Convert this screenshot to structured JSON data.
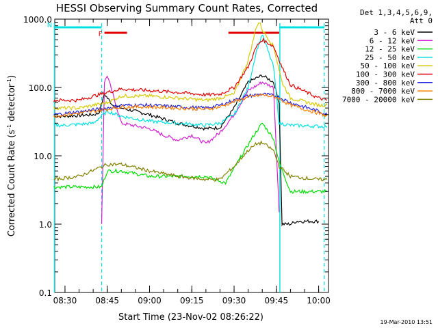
{
  "chart_data": {
    "type": "line",
    "title": "HESSI Observing Summary Count Rates, Corrected",
    "xlabel": "Start Time (23-Nov-02 08:26:22)",
    "ylabel_main": "Corrected Count Rate (s",
    "ylabel_sup1": "-1",
    "ylabel_mid": " detector",
    "ylabel_sup2": "-1",
    "ylabel_end": ")",
    "y_scale": "log",
    "ylim": [
      0.1,
      1000
    ],
    "xlim": [
      "08:26:22",
      "10:03:30"
    ],
    "x_ticks": [
      "08:30",
      "08:45",
      "09:00",
      "09:15",
      "09:30",
      "09:45",
      "10:00"
    ],
    "y_ticks": [
      "0.1",
      "1.0",
      "10.0",
      "100.0",
      "1000.0"
    ],
    "legend_header": [
      "Det 1,3,4,5,6,9,",
      "Att 0"
    ],
    "legend_placement": "top-right outside",
    "timestamp": "19-Mar-2010 13:51",
    "series": [
      {
        "name": "3 - 6 keV",
        "color": "#000000",
        "x": [
          "08:26",
          "08:30",
          "08:35",
          "08:40",
          "08:42",
          "08:44",
          "08:47",
          "08:50",
          "09:00",
          "09:10",
          "09:20",
          "09:25",
          "09:30",
          "09:35",
          "09:40",
          "09:44",
          "09:46",
          "09:47",
          "09:50",
          "09:52",
          "10:00"
        ],
        "y": [
          38,
          38,
          39,
          40,
          42,
          80,
          55,
          50,
          40,
          30,
          25,
          26,
          50,
          120,
          150,
          120,
          60,
          1.0,
          1.0,
          1.1,
          1.1
        ]
      },
      {
        "name": "6 - 12 keV",
        "color": "#d020d0",
        "x": [
          "08:43",
          "08:44",
          "08:45",
          "08:50",
          "09:00",
          "09:05",
          "09:10",
          "09:15",
          "09:20",
          "09:25",
          "09:30",
          "09:35",
          "09:40",
          "09:44",
          "09:46"
        ],
        "y": [
          1.0,
          120,
          150,
          30,
          25,
          20,
          17,
          20,
          15,
          22,
          40,
          90,
          120,
          100,
          1.5
        ]
      },
      {
        "name": "12 - 25 keV",
        "color": "#00dd00",
        "x": [
          "08:26",
          "08:35",
          "08:43",
          "08:45",
          "08:50",
          "09:00",
          "09:10",
          "09:20",
          "09:27",
          "09:32",
          "09:37",
          "09:40",
          "09:44",
          "09:46",
          "09:50",
          "10:00",
          "10:03"
        ],
        "y": [
          3.5,
          3.5,
          3.5,
          6,
          6,
          5,
          5,
          5,
          4,
          9,
          20,
          30,
          18,
          8,
          3,
          3,
          3
        ]
      },
      {
        "name": "25 - 50 keV",
        "color": "#00e0e0",
        "x": [
          "08:26",
          "08:30",
          "08:40",
          "08:45",
          "08:50",
          "09:00",
          "09:10",
          "09:20",
          "09:25",
          "09:30",
          "09:35",
          "09:38",
          "09:40",
          "09:44",
          "09:46",
          "09:50",
          "10:00",
          "10:03"
        ],
        "y": [
          28,
          28,
          30,
          45,
          38,
          32,
          30,
          28,
          30,
          40,
          100,
          350,
          600,
          200,
          30,
          28,
          27,
          27
        ]
      },
      {
        "name": "50 - 100 keV",
        "color": "#d8c800",
        "x": [
          "08:26",
          "08:35",
          "08:45",
          "08:50",
          "09:00",
          "09:10",
          "09:20",
          "09:25",
          "09:30",
          "09:35",
          "09:38",
          "09:39",
          "09:40",
          "09:44",
          "09:47",
          "09:50",
          "10:00",
          "10:03"
        ],
        "y": [
          50,
          50,
          60,
          75,
          75,
          70,
          65,
          70,
          80,
          250,
          800,
          900,
          700,
          400,
          120,
          70,
          55,
          55
        ]
      },
      {
        "name": "100 - 300 keV",
        "color": "#e00000",
        "x": [
          "08:26",
          "08:35",
          "08:45",
          "08:50",
          "09:00",
          "09:10",
          "09:20",
          "09:25",
          "09:30",
          "09:35",
          "09:38",
          "09:40",
          "09:44",
          "09:47",
          "09:50",
          "10:00",
          "10:03"
        ],
        "y": [
          65,
          65,
          85,
          95,
          90,
          85,
          78,
          80,
          100,
          200,
          400,
          500,
          400,
          200,
          110,
          70,
          65
        ]
      },
      {
        "name": "300 - 800 keV",
        "color": "#2020e0",
        "x": [
          "08:26",
          "08:35",
          "08:45",
          "08:50",
          "09:00",
          "09:10",
          "09:20",
          "09:25",
          "09:30",
          "09:35",
          "09:40",
          "09:45",
          "09:50",
          "10:00",
          "10:03"
        ],
        "y": [
          40,
          44,
          50,
          55,
          55,
          52,
          50,
          55,
          65,
          75,
          80,
          75,
          60,
          45,
          40
        ]
      },
      {
        "name": "800 - 7000 keV",
        "color": "#ff8000",
        "x": [
          "08:26",
          "08:35",
          "08:45",
          "08:50",
          "09:00",
          "09:10",
          "09:20",
          "09:25",
          "09:30",
          "09:35",
          "09:40",
          "09:45",
          "09:50",
          "10:00",
          "10:03"
        ],
        "y": [
          38,
          42,
          48,
          52,
          52,
          50,
          48,
          52,
          62,
          72,
          78,
          72,
          55,
          42,
          38
        ]
      },
      {
        "name": "7000 - 20000 keV",
        "color": "#808000",
        "x": [
          "08:26",
          "08:35",
          "08:45",
          "08:50",
          "09:00",
          "09:10",
          "09:20",
          "09:25",
          "09:30",
          "09:35",
          "09:38",
          "09:40",
          "09:44",
          "09:46",
          "09:50",
          "10:00",
          "10:03"
        ],
        "y": [
          4.5,
          5,
          7.5,
          7.5,
          6,
          5,
          4.5,
          4.5,
          7,
          12,
          15,
          15.5,
          12,
          7,
          5,
          4.5,
          4.5
        ]
      }
    ],
    "flags": [
      {
        "label": "F",
        "color": "#e00000",
        "start": "08:44",
        "end": "08:52",
        "level": "row1"
      },
      {
        "label": "",
        "color": "#e00000",
        "start": "09:28",
        "end": "09:46",
        "level": "row1"
      },
      {
        "label": "N",
        "color": "#00e0e0",
        "start": "08:26",
        "end": "08:43",
        "level": "row0"
      },
      {
        "label": "",
        "color": "#00e0e0",
        "start": "09:46",
        "end": "10:02",
        "level": "row0"
      }
    ],
    "event_lines": {
      "dashed": [
        "08:43",
        "10:02"
      ],
      "solid": [
        "08:26",
        "09:46"
      ],
      "color": "#00e0e0"
    }
  }
}
